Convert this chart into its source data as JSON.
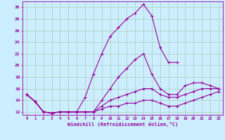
{
  "xlabel": "Windchill (Refroidissement éolien,°C)",
  "background_color": "#cceeff",
  "grid_color": "#aaccbb",
  "line_color": "#990099",
  "x_values": [
    0,
    1,
    2,
    3,
    4,
    5,
    6,
    7,
    8,
    9,
    10,
    11,
    12,
    13,
    14,
    15,
    16,
    17,
    18,
    19,
    20,
    21,
    22,
    23
  ],
  "series": [
    [
      15.0,
      13.8,
      12.0,
      11.8,
      12.0,
      12.0,
      12.0,
      14.5,
      18.5,
      22.0,
      25.0,
      26.5,
      28.0,
      29.0,
      30.5,
      28.5,
      23.0,
      20.5,
      20.5,
      null,
      null,
      null,
      null,
      null
    ],
    [
      15.0,
      13.8,
      12.0,
      11.8,
      12.0,
      12.0,
      12.0,
      12.0,
      12.0,
      14.0,
      16.0,
      18.0,
      19.5,
      21.0,
      22.0,
      18.5,
      16.0,
      15.0,
      15.0,
      16.5,
      17.0,
      17.0,
      16.5,
      16.0
    ],
    [
      15.0,
      13.8,
      12.0,
      11.8,
      12.0,
      12.0,
      12.0,
      12.0,
      12.0,
      13.0,
      14.0,
      14.5,
      15.0,
      15.5,
      16.0,
      16.0,
      15.0,
      14.5,
      14.5,
      15.0,
      15.5,
      16.0,
      16.0,
      16.0
    ],
    [
      15.0,
      13.8,
      12.0,
      11.8,
      12.0,
      12.0,
      12.0,
      12.0,
      12.0,
      12.5,
      13.0,
      13.0,
      13.5,
      13.5,
      14.0,
      14.0,
      13.5,
      13.0,
      13.0,
      13.5,
      14.0,
      14.5,
      15.0,
      15.5
    ]
  ],
  "ylim": [
    11.5,
    31.0
  ],
  "yticks": [
    12,
    14,
    16,
    18,
    20,
    22,
    24,
    26,
    28,
    30
  ],
  "xlim": [
    -0.5,
    23.5
  ],
  "marker": "+",
  "markersize": 3,
  "linewidth": 0.8
}
